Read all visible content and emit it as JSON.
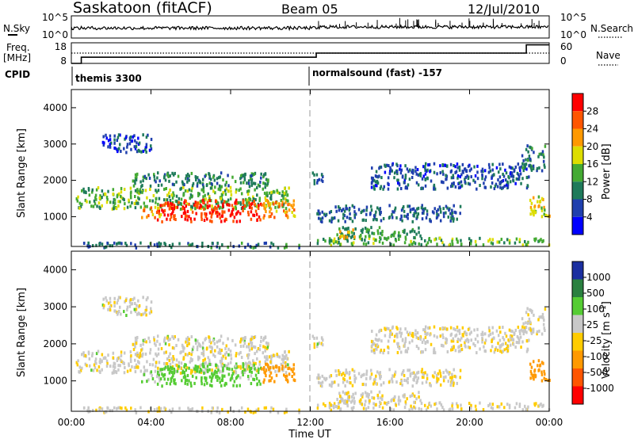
{
  "header": {
    "title": "Saskatoon (fitACF)",
    "beam": "Beam 05",
    "date": "12/Jul/2010"
  },
  "noise_panel": {
    "left_label": "N.Sky",
    "right_label": "N.Search",
    "y_ticks": [
      "10^5",
      "10^0"
    ],
    "y_ticks_right": [
      "10^5",
      "10^0"
    ]
  },
  "freq_panel": {
    "left_label_1": "Freq.",
    "left_label_2": "[MHz]",
    "right_label": "Nave",
    "y_ticks": [
      "18",
      "8"
    ],
    "y_ticks_right": [
      "60",
      "0"
    ],
    "freq_steps": [
      {
        "t": 0,
        "v": 8
      },
      {
        "t": 0.5,
        "v": 11
      },
      {
        "t": 12.25,
        "v": 11
      },
      {
        "t": 12.3,
        "v": 13
      },
      {
        "t": 22.8,
        "v": 13
      },
      {
        "t": 22.85,
        "v": 17
      },
      {
        "t": 24,
        "v": 17
      }
    ],
    "nave_level": 30
  },
  "cpid": {
    "label": "CPID",
    "segments": [
      {
        "start": 0,
        "end": 11.95,
        "name": "themis 3300"
      },
      {
        "start": 11.95,
        "end": 24,
        "name": "normalsound (fast) -157"
      }
    ]
  },
  "power_panel": {
    "ylabel": "Slant Range [km]",
    "colorbar_label": "Power [dB]",
    "colorbar_ticks": [
      "28",
      "24",
      "20",
      "16",
      "12",
      "8",
      "4"
    ],
    "colors": [
      "#ff0000",
      "#ff5500",
      "#ff9900",
      "#dddd00",
      "#44aa33",
      "#1e7a5a",
      "#1f3fae",
      "#0000ff"
    ]
  },
  "velocity_panel": {
    "ylabel": "Slant Range [km]",
    "colorbar_label": "Velocity [m s^-1]",
    "colorbar_ticks": [
      "1000",
      "500",
      "100",
      "25",
      "-25",
      "-100",
      "-500",
      "-1000"
    ],
    "colors": [
      "#1b2fa0",
      "#2a8040",
      "#55cc33",
      "#c8c8c8",
      "#ffcc00",
      "#ff9900",
      "#ff5500",
      "#ff0000"
    ]
  },
  "x_axis": {
    "label": "Time UT",
    "ticks": [
      "00:00",
      "04:00",
      "08:00",
      "12:00",
      "16:00",
      "20:00",
      "00:00"
    ]
  },
  "chart_data": {
    "type": "heatmap",
    "title": "Saskatoon (fitACF)",
    "subtitle": "Beam 05",
    "date": "12/Jul/2010",
    "xlabel": "Time UT",
    "ylabel": "Slant Range [km]",
    "xlim": [
      0,
      24
    ],
    "ylim": [
      180,
      4500
    ],
    "y_ticks": [
      1000,
      2000,
      3000,
      4000
    ],
    "grid": false,
    "scatter_regions": [
      {
        "t0": 0.2,
        "t1": 11.0,
        "r0": 1250,
        "r1": 1850,
        "power": 14,
        "velocity": 5
      },
      {
        "t0": 4.2,
        "t1": 9.5,
        "r0": 900,
        "r1": 1500,
        "power": 29,
        "velocity": 120
      },
      {
        "t0": 3.5,
        "t1": 4.5,
        "r0": 1000,
        "r1": 1300,
        "power": 22,
        "velocity": 30
      },
      {
        "t0": 9.5,
        "t1": 11.2,
        "r0": 1000,
        "r1": 1500,
        "power": 22,
        "velocity": -200
      },
      {
        "t0": 3.0,
        "t1": 10.0,
        "r0": 1850,
        "r1": 2250,
        "power": 10,
        "velocity": 10
      },
      {
        "t0": 12.3,
        "t1": 24,
        "r0": 250,
        "r1": 450,
        "power": 14,
        "velocity": 0
      },
      {
        "t0": 13.2,
        "t1": 17.5,
        "r0": 450,
        "r1": 750,
        "power": 12,
        "velocity": 0
      },
      {
        "t0": 13.4,
        "t1": 14.2,
        "r0": 450,
        "r1": 700,
        "power": 22,
        "velocity": 0
      },
      {
        "t0": 12.3,
        "t1": 19.5,
        "r0": 900,
        "r1": 1350,
        "power": 8,
        "velocity": 0
      },
      {
        "t0": 15.0,
        "t1": 23.0,
        "r0": 1800,
        "r1": 2500,
        "power": 7,
        "velocity": 0
      },
      {
        "t0": 12.0,
        "t1": 12.6,
        "r0": 1900,
        "r1": 2300,
        "power": 8,
        "velocity": 10
      },
      {
        "t0": 0.5,
        "t1": 11.5,
        "r0": 180,
        "r1": 320,
        "power": 9,
        "velocity": 0
      },
      {
        "t0": 1.5,
        "t1": 4.0,
        "r0": 2800,
        "r1": 3300,
        "power": 6,
        "velocity": 10
      },
      {
        "t0": 22.6,
        "t1": 23.8,
        "r0": 2300,
        "r1": 3000,
        "power": 10,
        "velocity": 10
      },
      {
        "t0": 23.0,
        "t1": 24,
        "r0": 1000,
        "r1": 1600,
        "power": 18,
        "velocity": -200
      }
    ]
  }
}
